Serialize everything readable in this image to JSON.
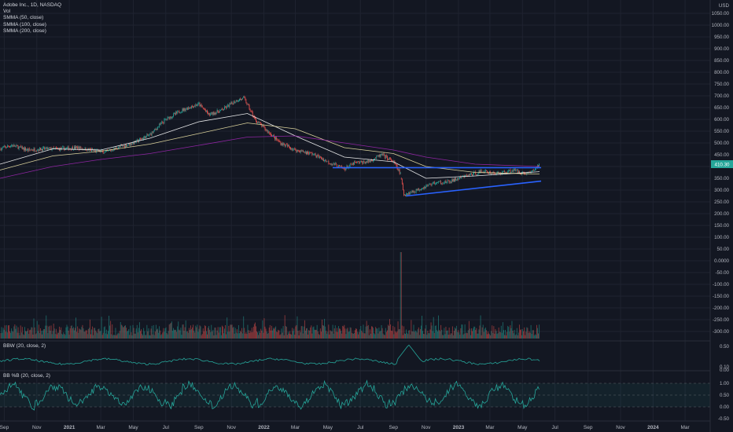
{
  "legend": {
    "symbol": "Adobe Inc., 1D, NASDAQ",
    "vol": "Vol",
    "smma50": "SMMA (50, close)",
    "smma100": "SMMA (100, close)",
    "smma200": "SMMA (200, close)"
  },
  "panels": {
    "bbw": "BBW (20, close, 2)",
    "bbpct": "BB %B (20, close, 2)"
  },
  "colors": {
    "background": "#131722",
    "up": "#26a69a",
    "down": "#ef5350",
    "smma50": "#ffffff",
    "smma100": "#f0e6a8",
    "smma200": "#9c27b0",
    "trendline": "#2962ff",
    "indicator": "#26a69a",
    "price_tag": "#26a69a"
  },
  "chart_data": {
    "type": "line",
    "title": "Adobe Inc., 1D, NASDAQ",
    "currency": "USD",
    "price_tag": "410.30",
    "x_tick_labels": [
      "Sep",
      "Nov",
      "2021",
      "Mar",
      "May",
      "Jul",
      "Sep",
      "Nov",
      "2022",
      "Mar",
      "May",
      "Jul",
      "Sep",
      "Nov",
      "2023",
      "Mar",
      "May",
      "Jul",
      "Sep",
      "Nov",
      "2024",
      "Mar"
    ],
    "y_tick_labels": [
      "1050.00",
      "1000.00",
      "950.00",
      "900.00",
      "850.00",
      "800.00",
      "750.00",
      "700.00",
      "650.00",
      "600.00",
      "550.00",
      "500.00",
      "450.00",
      "400.00",
      "350.00",
      "300.00",
      "250.00",
      "200.00",
      "150.00",
      "100.00",
      "50.00",
      "0.0000",
      "-50.00",
      "-100.00",
      "-150.00",
      "-200.00",
      "-250.00",
      "-300.00"
    ],
    "ylim": [
      -320,
      1085
    ],
    "price_series": {
      "name": "Close",
      "x": [
        "2020-08-24",
        "2020-09-15",
        "2020-10-15",
        "2020-11-15",
        "2020-12-15",
        "2021-01-15",
        "2021-02-15",
        "2021-03-10",
        "2021-04-01",
        "2021-05-01",
        "2021-06-01",
        "2021-07-01",
        "2021-08-01",
        "2021-09-01",
        "2021-09-20",
        "2021-10-15",
        "2021-11-10",
        "2021-11-25",
        "2021-12-15",
        "2022-01-10",
        "2022-02-01",
        "2022-03-01",
        "2022-04-01",
        "2022-05-01",
        "2022-06-01",
        "2022-06-20",
        "2022-07-15",
        "2022-08-10",
        "2022-09-01",
        "2022-09-14",
        "2022-09-20",
        "2022-10-15",
        "2022-11-15",
        "2022-12-15",
        "2023-01-15",
        "2023-02-15",
        "2023-03-15",
        "2023-04-15",
        "2023-05-05",
        "2023-05-20",
        "2023-06-02"
      ],
      "y": [
        475,
        490,
        470,
        475,
        475,
        480,
        468,
        460,
        480,
        500,
        535,
        600,
        640,
        665,
        620,
        640,
        680,
        690,
        600,
        545,
        500,
        470,
        455,
        420,
        390,
        415,
        420,
        450,
        420,
        370,
        280,
        300,
        330,
        335,
        360,
        380,
        370,
        385,
        370,
        380,
        410
      ]
    },
    "smma": [
      {
        "name": "SMMA (50, close)",
        "x": [
          "2020-08-24",
          "2020-12-01",
          "2021-03-01",
          "2021-06-01",
          "2021-09-01",
          "2021-12-01",
          "2022-03-01",
          "2022-06-01",
          "2022-09-01",
          "2022-11-01",
          "2023-02-01",
          "2023-06-02"
        ],
        "y": [
          410,
          475,
          470,
          520,
          590,
          625,
          530,
          440,
          420,
          350,
          360,
          378
        ]
      },
      {
        "name": "SMMA (100, close)",
        "x": [
          "2020-08-24",
          "2020-12-01",
          "2021-03-01",
          "2021-06-01",
          "2021-09-01",
          "2021-12-01",
          "2022-03-01",
          "2022-06-01",
          "2022-09-01",
          "2022-11-01",
          "2023-02-01",
          "2023-06-02"
        ],
        "y": [
          385,
          445,
          465,
          495,
          540,
          585,
          560,
          480,
          455,
          400,
          375,
          368
        ]
      },
      {
        "name": "SMMA (200, close)",
        "x": [
          "2020-08-24",
          "2020-12-01",
          "2021-03-01",
          "2021-06-01",
          "2021-09-01",
          "2021-12-01",
          "2022-03-01",
          "2022-06-01",
          "2022-09-01",
          "2022-11-01",
          "2023-02-01",
          "2023-06-02"
        ],
        "y": [
          350,
          400,
          430,
          455,
          490,
          525,
          530,
          500,
          470,
          440,
          410,
          400
        ]
      }
    ],
    "trendlines": [
      {
        "x": [
          "2022-05-10",
          "2023-06-05"
        ],
        "y": [
          395,
          395
        ]
      },
      {
        "x": [
          "2022-09-25",
          "2023-06-05"
        ],
        "y": [
          275,
          338
        ]
      }
    ],
    "volume_spike": {
      "x": "2022-09-15",
      "y": 0
    },
    "bbw": {
      "y_tick_labels": [
        "0.50",
        "0.10",
        "0.00"
      ],
      "ylim": [
        0,
        0.62
      ]
    },
    "bbpct": {
      "y_tick_labels": [
        "1.00",
        "0.50",
        "0.00",
        "-0.50"
      ],
      "ylim": [
        -0.7,
        1.25
      ]
    }
  }
}
